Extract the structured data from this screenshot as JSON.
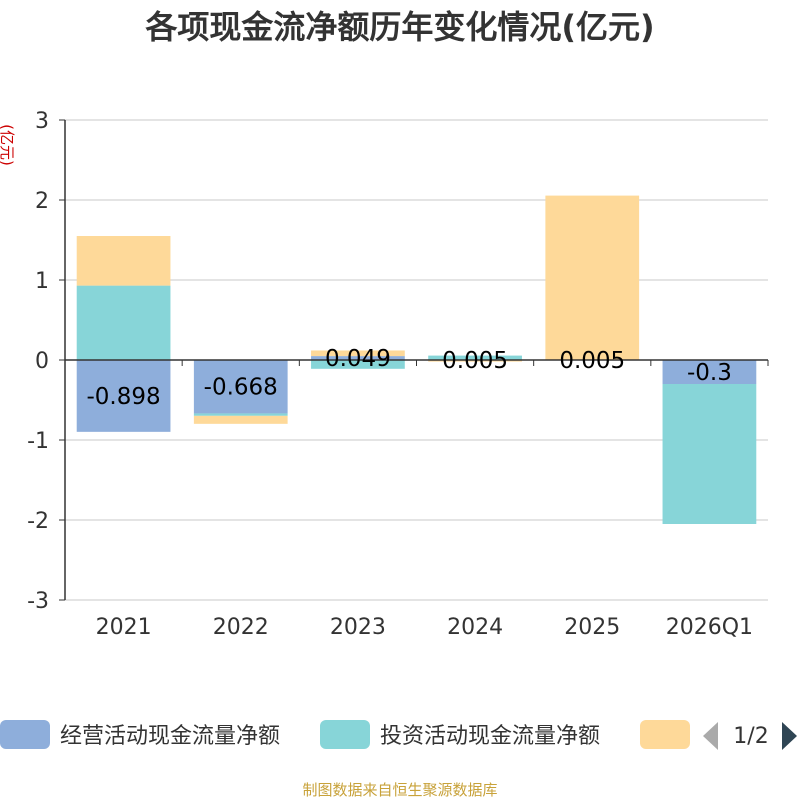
{
  "chart_data": {
    "type": "bar",
    "stacked": true,
    "title": "各项现金流净额历年变化情况(亿元)",
    "ylabel": "(亿元)",
    "categories": [
      "2021",
      "2022",
      "2023",
      "2024",
      "2025",
      "2026Q1"
    ],
    "ylim": [
      -3,
      3
    ],
    "yticks": [
      3,
      2,
      1,
      0,
      -1,
      -2,
      -3
    ],
    "series": [
      {
        "name": "经营活动现金流量净额",
        "color": "#8eaedb",
        "values": [
          -0.898,
          -0.668,
          0.049,
          0.005,
          0.005,
          -0.3
        ]
      },
      {
        "name": "投资活动现金流量净额",
        "color": "#87d5d8",
        "values": [
          0.93,
          -0.03,
          -0.11,
          0.05,
          0,
          -1.75
        ]
      },
      {
        "name": "",
        "color": "#fed999",
        "values": [
          0.62,
          -0.1,
          0.07,
          -0.02,
          2.05,
          0
        ]
      }
    ],
    "data_labels": [
      "-0.898",
      "-0.668",
      "0.049",
      "0.005",
      "0.005",
      "-0.3"
    ],
    "legend": {
      "position": "bottom",
      "page_indicator": "1/2"
    },
    "source": "制图数据来自恒生聚源数据库"
  }
}
